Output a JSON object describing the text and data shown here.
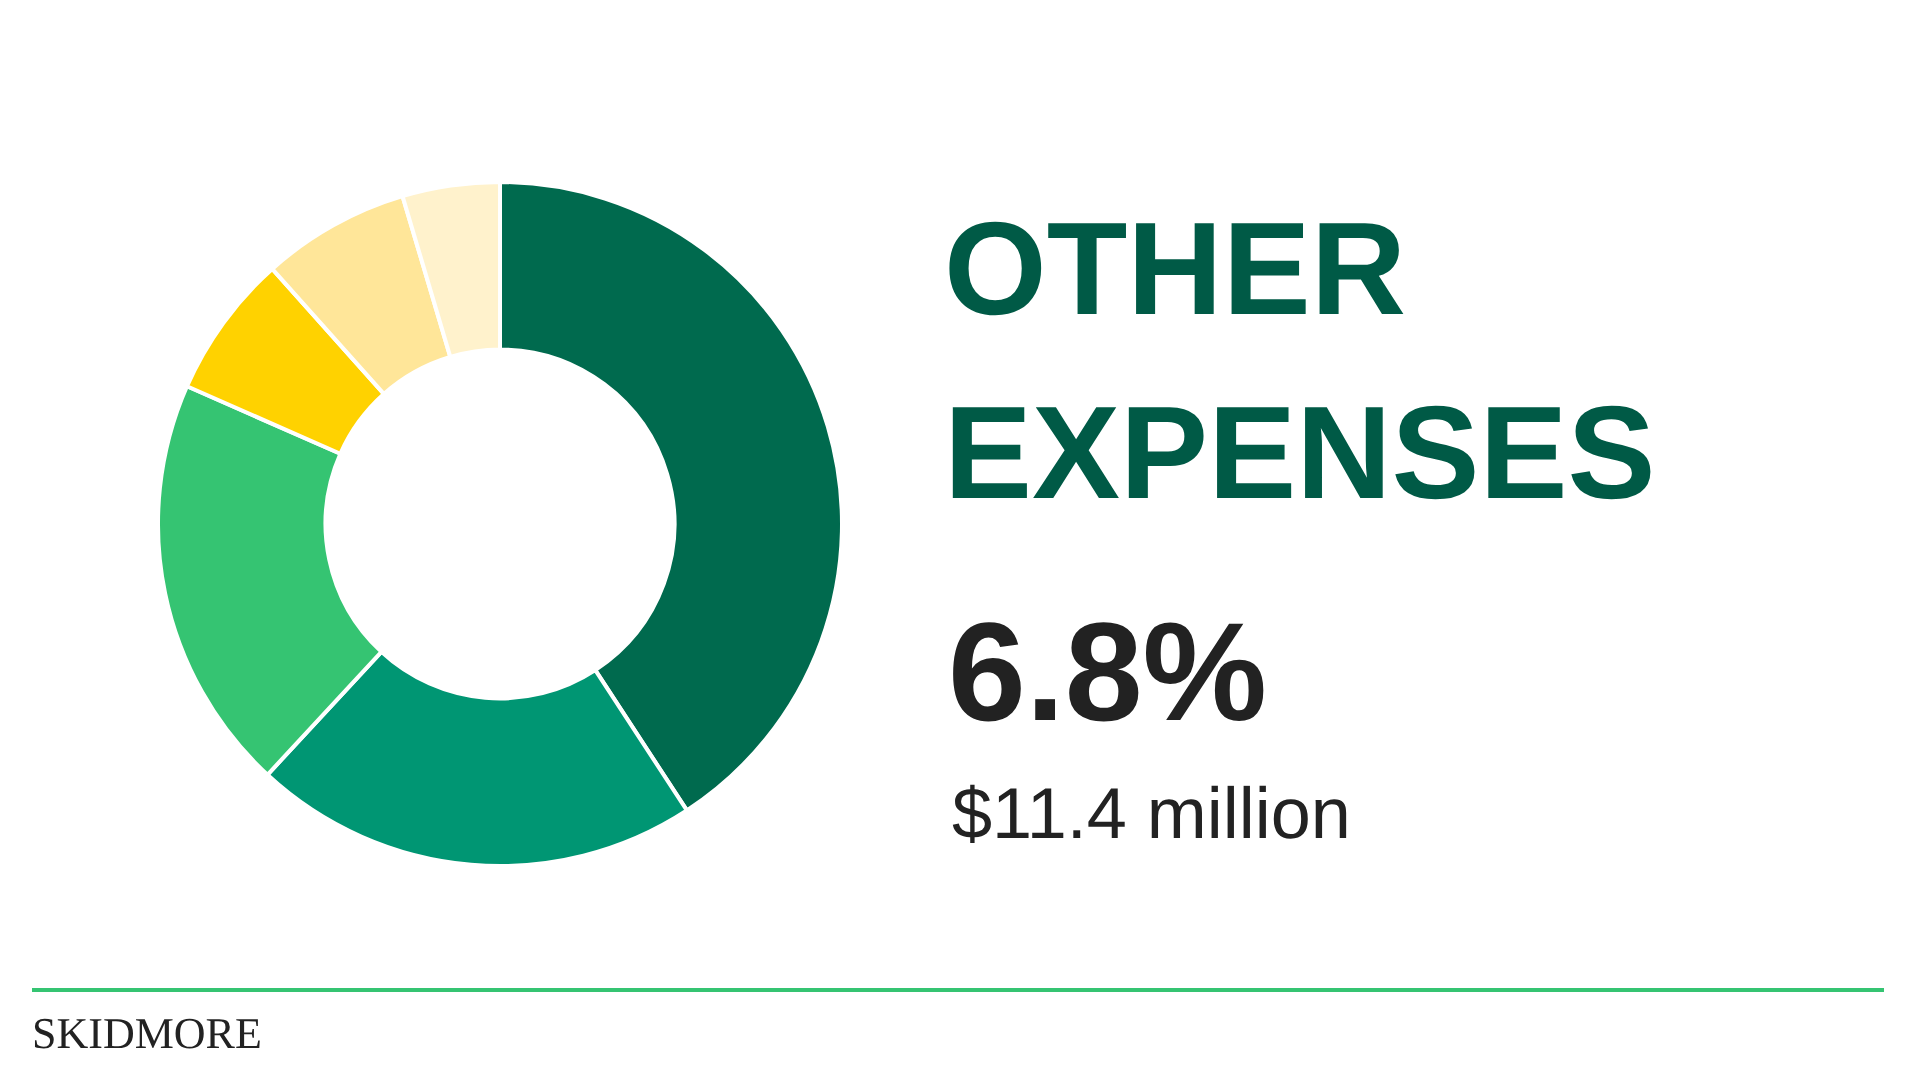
{
  "chart_data": {
    "type": "donut",
    "title": "OTHER EXPENSES",
    "categories": [
      null,
      null,
      null,
      null,
      null,
      null
    ],
    "values": [
      40.8,
      21.1,
      19.7,
      6.8,
      7.0,
      4.6
    ],
    "colors": [
      "#006a4e",
      "#009673",
      "#35c472",
      "#ffd200",
      "#ffe699",
      "#fff2cc"
    ],
    "annotations": [
      "6.8%",
      "$11.4 million",
      "SKIDMORE"
    ],
    "legend": false
  }
}
